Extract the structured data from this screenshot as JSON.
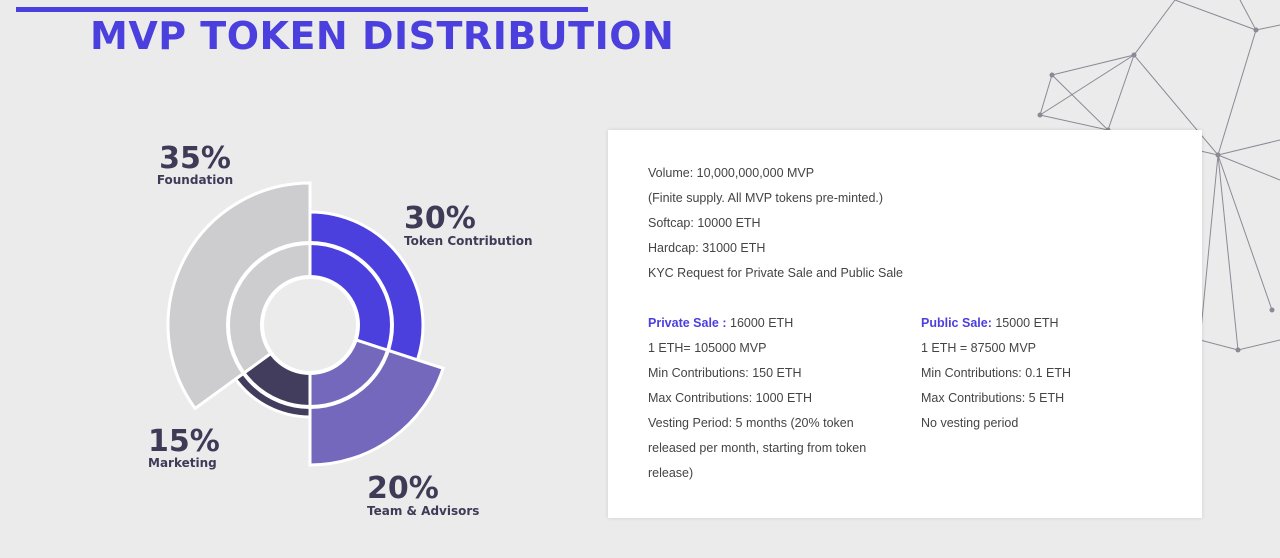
{
  "page": {
    "title": "MVP TOKEN DISTRIBUTION"
  },
  "colors": {
    "accent": "#4b3fdd",
    "foundation": "#cdcdcf",
    "token_contribution": "#4b3fdd",
    "team_advisors": "#7468bd",
    "marketing": "#433d5d",
    "label_text": "#3f3b57"
  },
  "chart_data": {
    "type": "pie",
    "title": "",
    "slices": [
      {
        "percent_label": "35%",
        "name": "Foundation",
        "value": 35
      },
      {
        "percent_label": "30%",
        "name": "Token Contribution",
        "value": 30
      },
      {
        "percent_label": "20%",
        "name": "Team & Advisors",
        "value": 20
      },
      {
        "percent_label": "15%",
        "name": "Marketing",
        "value": 15
      }
    ]
  },
  "info": {
    "summary": [
      "Volume: 10,000,000,000 MVP",
      "(Finite supply. All MVP tokens pre-minted.)",
      "Softcap: 10000 ETH",
      "Hardcap: 31000 ETH",
      "KYC Request for Private Sale and Public Sale"
    ],
    "private_sale": {
      "label": "Private Sale :",
      "amount": " 16000 ETH",
      "lines": [
        "1 ETH= 105000 MVP",
        "Min Contributions: 150 ETH",
        "Max Contributions: 1000 ETH",
        "Vesting Period: 5 months (20% token released per month, starting from token release)"
      ]
    },
    "public_sale": {
      "label": "Public Sale:",
      "amount": " 15000 ETH",
      "lines": [
        "1 ETH = 87500 MVP",
        "Min Contributions: 0.1 ETH",
        "Max Contributions: 5 ETH",
        "No vesting period"
      ]
    }
  }
}
